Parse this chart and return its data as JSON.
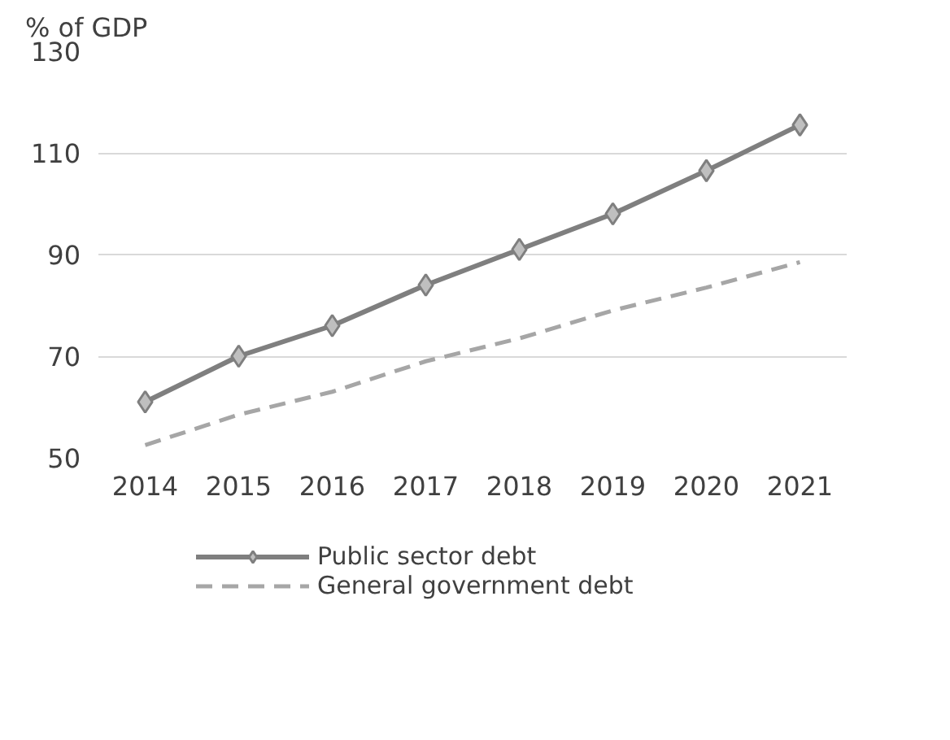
{
  "chart_data": {
    "type": "line",
    "ylabel": "% of GDP",
    "categories": [
      "2014",
      "2015",
      "2016",
      "2017",
      "2018",
      "2019",
      "2020",
      "2021"
    ],
    "series": [
      {
        "name": "Public sector debt",
        "color": "#7f7f7f",
        "marker": "diamond",
        "line_style": "solid",
        "values": [
          61,
          70,
          76,
          84,
          91,
          98,
          106.5,
          115.5
        ]
      },
      {
        "name": "General government debt",
        "color": "#a6a6a6",
        "marker": "none",
        "line_style": "dashed",
        "values": [
          52.5,
          58.5,
          63,
          69,
          73.5,
          79,
          83.5,
          88.5
        ]
      }
    ],
    "ylim": [
      50,
      130
    ],
    "yticks": [
      50,
      70,
      90,
      110,
      130
    ],
    "grid": "y",
    "legend": "bottom"
  }
}
